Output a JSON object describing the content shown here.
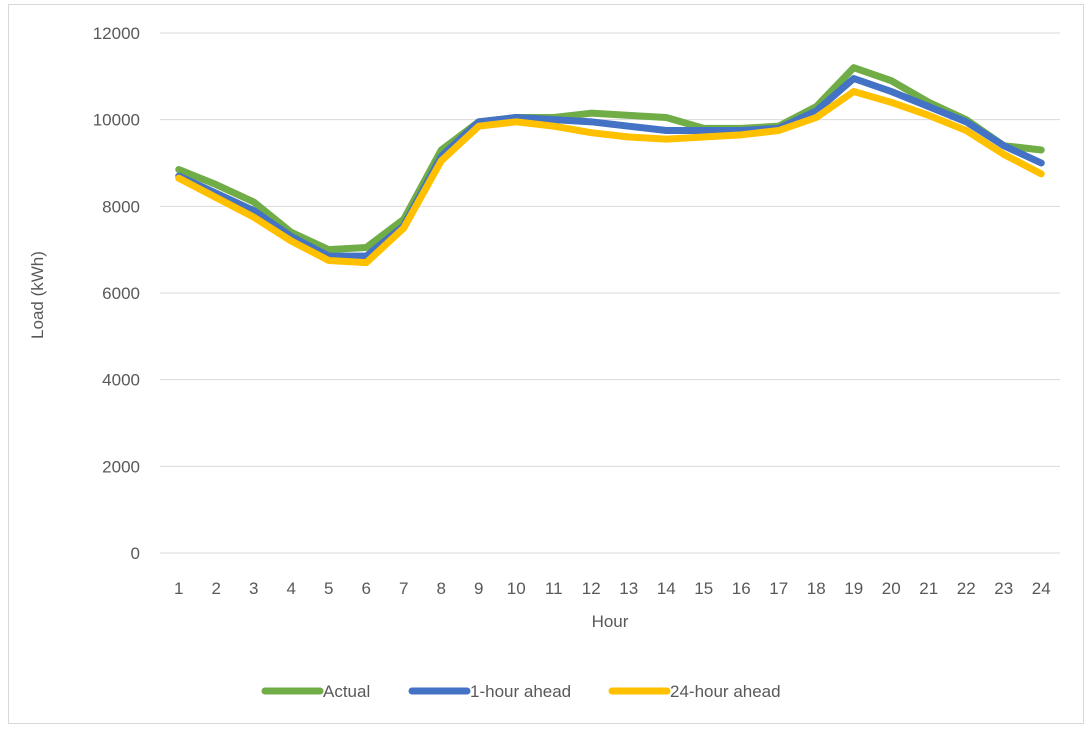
{
  "chart_data": {
    "type": "line",
    "title": "",
    "xlabel": "Hour",
    "ylabel": "Load (kWh)",
    "ylim": [
      0,
      12000
    ],
    "yticks": [
      0,
      2000,
      4000,
      6000,
      8000,
      10000,
      12000
    ],
    "categories": [
      "1",
      "2",
      "3",
      "4",
      "5",
      "6",
      "7",
      "8",
      "9",
      "10",
      "11",
      "12",
      "13",
      "14",
      "15",
      "16",
      "17",
      "18",
      "19",
      "20",
      "21",
      "22",
      "23",
      "24"
    ],
    "grid": true,
    "legend": "bottom",
    "series": [
      {
        "name": "Actual",
        "color": "#70ad47",
        "values": [
          8850,
          8500,
          8100,
          7400,
          7000,
          7050,
          7700,
          9300,
          9950,
          10050,
          10050,
          10150,
          10100,
          10050,
          9800,
          9800,
          9850,
          10300,
          11200,
          10900,
          10400,
          10000,
          9400,
          9300
        ]
      },
      {
        "name": "1-hour ahead",
        "color": "#4472c4",
        "values": [
          8700,
          8300,
          7900,
          7300,
          6850,
          6850,
          7550,
          9150,
          9950,
          10050,
          10000,
          9950,
          9850,
          9750,
          9750,
          9750,
          9800,
          10200,
          10950,
          10650,
          10300,
          9950,
          9400,
          9000
        ]
      },
      {
        "name": "24-hour ahead",
        "color": "#ffc000",
        "values": [
          8650,
          8200,
          7750,
          7200,
          6750,
          6700,
          7500,
          9050,
          9850,
          9950,
          9850,
          9700,
          9600,
          9550,
          9600,
          9650,
          9750,
          10050,
          10650,
          10400,
          10100,
          9750,
          9200,
          8750
        ]
      }
    ]
  }
}
